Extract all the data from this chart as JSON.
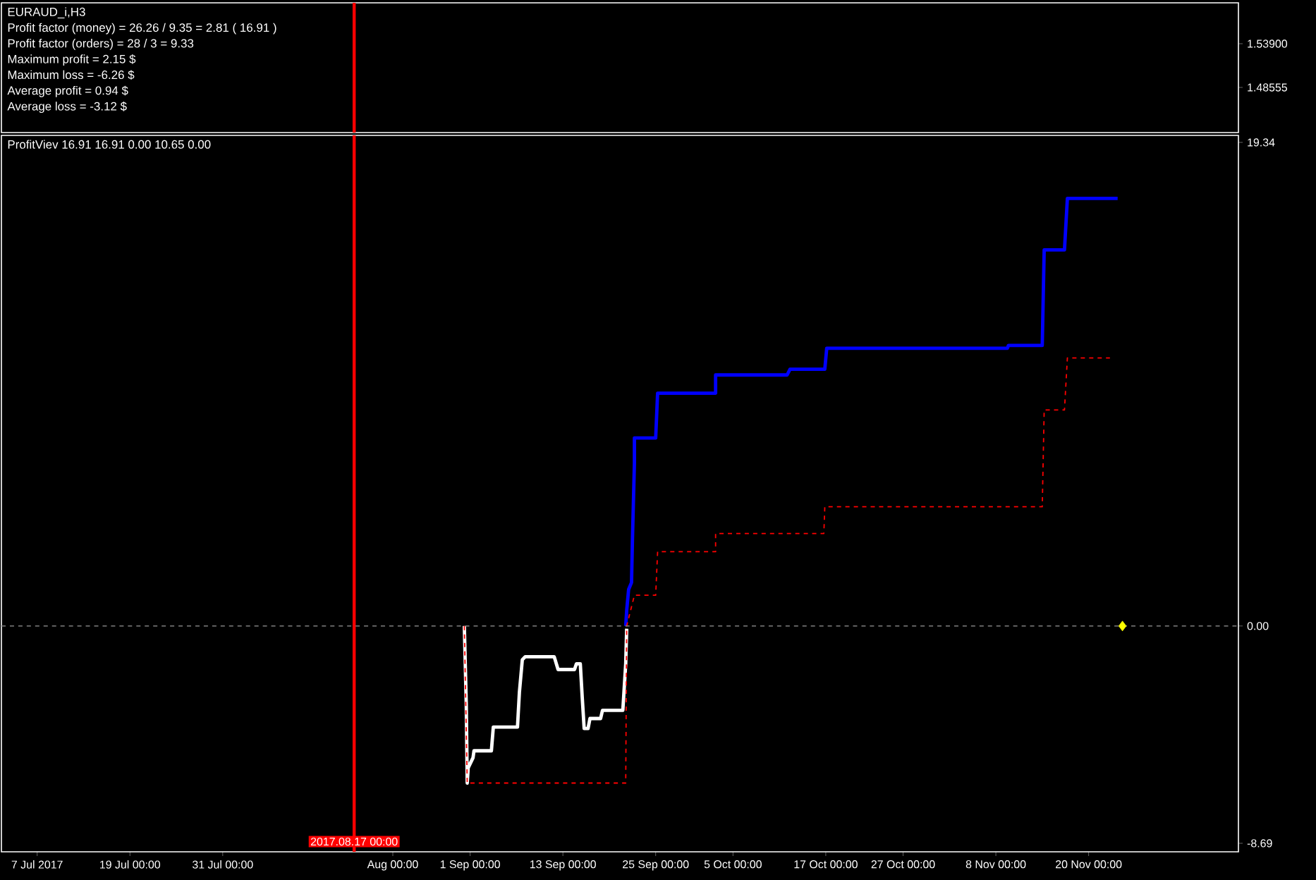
{
  "chart_data": [
    {
      "type": "line",
      "title": "EURAUD_i,H3",
      "annotations": [
        "Profit factor (money) = 26.26 / 9.35 = 2.81 ( 16.91 )",
        "Profit factor  (orders) = 28 / 3 = 9.33",
        "Maximum profit = 2.15 $",
        "Maximum loss = -6.26 $",
        "Average profit = 0.94 $",
        "Average loss = -3.12 $"
      ],
      "xlim": [
        "2017-07-02T09:00",
        "2017-12-09T09:00"
      ],
      "ylim": [
        1.4304,
        1.589
      ],
      "yticks": [
        {
          "value": 1.539,
          "label": "1.53900"
        },
        {
          "value": 1.48555,
          "label": "1.48555"
        }
      ],
      "ref_lines": [
        {
          "axis": "x",
          "value": "2017-08-17T00:00",
          "color": "#ff0000"
        }
      ],
      "tick_labels": "y"
    },
    {
      "type": "line",
      "title": "ProfitViev 16.91 16.91 0.00 10.65 0.00",
      "series": [
        {
          "color": "#ffffff",
          "line_style": "solid",
          "x": [
            "2017-08-31T06:00",
            "2017-08-31T12:00",
            "2017-08-31T15:00",
            "2017-08-31T18:00",
            "2017-09-01T09:00",
            "2017-09-01T12:00",
            "2017-09-03T18:00",
            "2017-09-04T00:00",
            "2017-09-07T03:00",
            "2017-09-07T09:00",
            "2017-09-07T18:00",
            "2017-09-08T03:00",
            "2017-09-11T21:00",
            "2017-09-12T09:00",
            "2017-09-14T12:00",
            "2017-09-14T18:00",
            "2017-09-15T06:00",
            "2017-09-15T12:00",
            "2017-09-15T18:00",
            "2017-09-16T06:00",
            "2017-09-16T12:00",
            "2017-09-17T21:00",
            "2017-09-18T03:00",
            "2017-09-20T18:00",
            "2017-09-20T21:00",
            "2017-09-21T03:00",
            "2017-09-21T06:00"
          ],
          "values": [
            0,
            -3.14,
            -6.28,
            -5.67,
            -5.27,
            -4.99,
            -4.99,
            -4.04,
            -4.04,
            -2.64,
            -1.35,
            -1.23,
            -1.23,
            -1.74,
            -1.74,
            -1.51,
            -1.51,
            -2.86,
            -4.1,
            -4.1,
            -3.7,
            -3.7,
            -3.37,
            -3.37,
            -2.75,
            -1.51,
            -0.11
          ]
        },
        {
          "color": "#0000ff",
          "line_style": "solid",
          "x": [
            "2017-09-21T03:00",
            "2017-09-21T06:00",
            "2017-09-21T12:00",
            "2017-09-21T21:00",
            "2017-09-22T00:00",
            "2017-09-22T06:00",
            "2017-09-22T06:00",
            "2017-09-25T00:00",
            "2017-09-25T06:00",
            "2017-10-02T18:00",
            "2017-10-02T18:00",
            "2017-10-12T00:00",
            "2017-10-12T09:00",
            "2017-10-16T21:00",
            "2017-10-17T03:00",
            "2017-11-09T12:00",
            "2017-11-09T15:00",
            "2017-11-14T00:00",
            "2017-11-14T06:00",
            "2017-11-16T21:00",
            "2017-11-17T06:00",
            "2017-11-23T18:00"
          ],
          "values": [
            0,
            0.62,
            1.46,
            1.74,
            3.53,
            6.51,
            7.52,
            7.52,
            9.31,
            9.31,
            10.04,
            10.04,
            10.27,
            10.27,
            11.11,
            11.11,
            11.22,
            11.22,
            15.04,
            15.04,
            17.1,
            17.1
          ]
        },
        {
          "color": "#ff0000",
          "line_style": "dashed",
          "x": [
            "2017-08-31T06:00",
            "2017-08-31T15:00",
            "2017-09-21T03:00",
            "2017-09-21T06:00",
            "2017-09-22T06:00",
            "2017-09-25T00:00",
            "2017-09-25T06:00",
            "2017-10-02T18:00",
            "2017-10-02T18:00",
            "2017-10-16T18:00",
            "2017-10-16T21:00",
            "2017-11-14T00:00",
            "2017-11-14T06:00",
            "2017-11-16T21:00",
            "2017-11-17T06:00",
            "2017-11-22T18:00"
          ],
          "values": [
            0,
            -6.28,
            -6.28,
            0,
            1.23,
            1.23,
            2.97,
            2.97,
            3.7,
            3.7,
            4.77,
            4.77,
            8.64,
            8.64,
            10.72,
            10.72
          ]
        },
        {
          "type": "scatter",
          "color": "#ffff00",
          "marker": "diamond",
          "x": [
            "2017-11-24T09:00"
          ],
          "values": [
            0
          ]
        }
      ],
      "xlim": [
        "2017-07-02T09:00",
        "2017-12-09T09:00"
      ],
      "ylim": [
        -9.03,
        19.62
      ],
      "xticks": [
        {
          "value": "2017-07-07",
          "label": "7 Jul 2017"
        },
        {
          "value": "2017-07-19",
          "label": "19 Jul 00:00"
        },
        {
          "value": "2017-07-31",
          "label": "31 Jul 00:00"
        },
        {
          "value": "2017-08-22",
          "label": "Aug 00:00"
        },
        {
          "value": "2017-09-01",
          "label": "1 Sep 00:00"
        },
        {
          "value": "2017-09-13",
          "label": "13 Sep 00:00"
        },
        {
          "value": "2017-09-25",
          "label": "25 Sep 00:00"
        },
        {
          "value": "2017-10-05",
          "label": "5 Oct 00:00"
        },
        {
          "value": "2017-10-17",
          "label": "17 Oct 00:00"
        },
        {
          "value": "2017-10-27",
          "label": "27 Oct 00:00"
        },
        {
          "value": "2017-11-08",
          "label": "8 Nov 00:00"
        },
        {
          "value": "2017-11-20",
          "label": "20 Nov 00:00"
        }
      ],
      "yticks": [
        19.34,
        {
          "value": 0,
          "label": "0.00"
        },
        -8.69
      ],
      "ref_lines": [
        {
          "axis": "x",
          "value": "2017-08-17T00:00",
          "label": "2017.08.17 00:00",
          "color": "#ff0000"
        },
        {
          "axis": "y",
          "value": 0,
          "color": "#808080",
          "line_style": "dashed"
        }
      ]
    }
  ]
}
